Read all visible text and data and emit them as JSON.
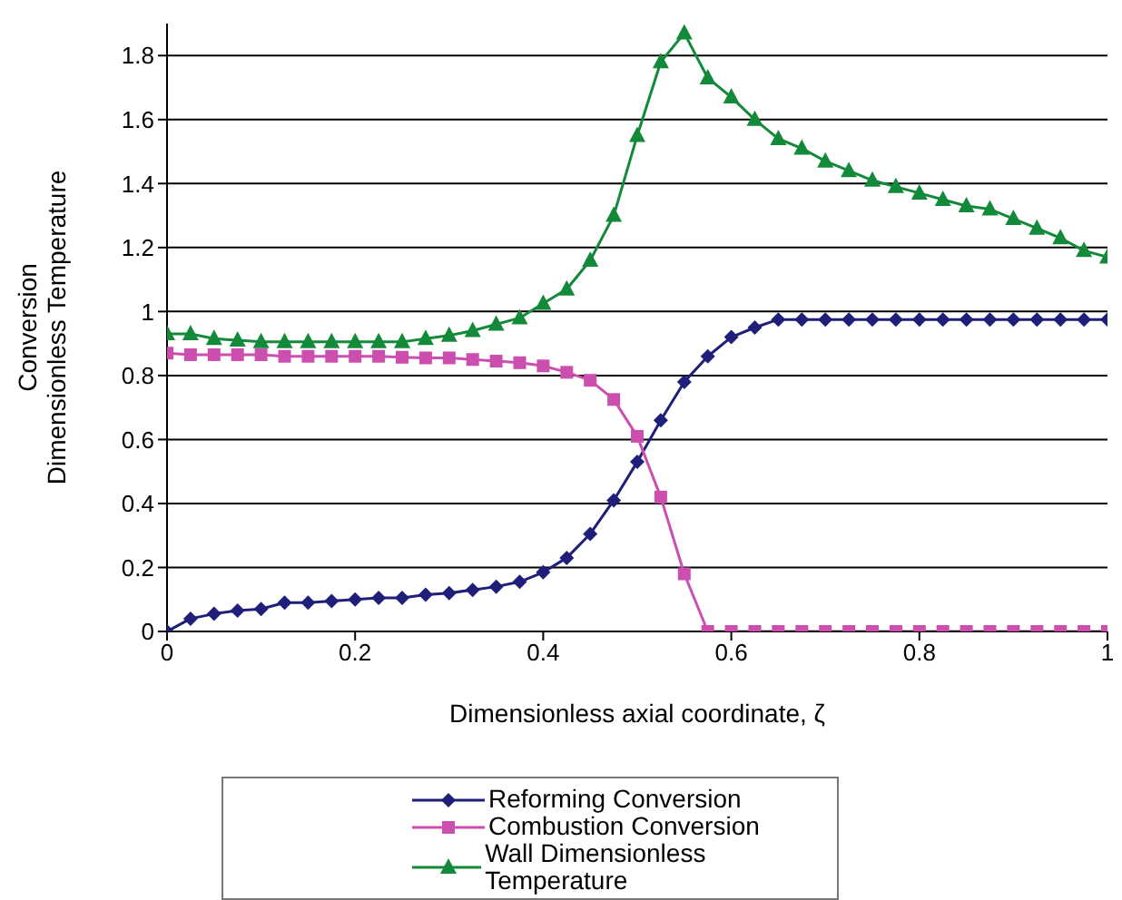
{
  "chart_data": {
    "type": "line",
    "xlabel": "Dimensionless axial coordinate, ζ",
    "ylabel": "Conversion\nDimensionless Temperature",
    "x": [
      0,
      0.025,
      0.05,
      0.075,
      0.1,
      0.125,
      0.15,
      0.175,
      0.2,
      0.225,
      0.25,
      0.275,
      0.3,
      0.325,
      0.35,
      0.375,
      0.4,
      0.425,
      0.45,
      0.475,
      0.5,
      0.525,
      0.55,
      0.575,
      0.6,
      0.625,
      0.65,
      0.675,
      0.7,
      0.725,
      0.75,
      0.775,
      0.8,
      0.825,
      0.85,
      0.875,
      0.9,
      0.925,
      0.95,
      0.975,
      1
    ],
    "series": [
      {
        "name": "Reforming Conversion",
        "color": "#1f1f7a",
        "marker": "diamond",
        "values": [
          0,
          0.04,
          0.055,
          0.065,
          0.07,
          0.09,
          0.09,
          0.095,
          0.1,
          0.105,
          0.105,
          0.115,
          0.12,
          0.13,
          0.14,
          0.155,
          0.185,
          0.23,
          0.305,
          0.41,
          0.53,
          0.66,
          0.78,
          0.86,
          0.92,
          0.95,
          0.975,
          0.975,
          0.975,
          0.975,
          0.975,
          0.975,
          0.975,
          0.975,
          0.975,
          0.975,
          0.975,
          0.975,
          0.975,
          0.975,
          0.975
        ]
      },
      {
        "name": "Combustion Conversion",
        "color": "#cc4fb0",
        "marker": "square",
        "values": [
          0.87,
          0.865,
          0.865,
          0.865,
          0.865,
          0.86,
          0.86,
          0.86,
          0.86,
          0.86,
          0.857,
          0.855,
          0.855,
          0.85,
          0.845,
          0.84,
          0.83,
          0.81,
          0.785,
          0.725,
          0.61,
          0.42,
          0.18,
          0,
          0,
          0,
          0,
          0,
          0,
          0,
          0,
          0,
          0,
          0,
          0,
          0,
          0,
          0,
          0,
          0,
          0
        ]
      },
      {
        "name": "Wall Dimensionless Temperature",
        "color": "#138a3a",
        "marker": "triangle",
        "values": [
          0.93,
          0.93,
          0.915,
          0.91,
          0.905,
          0.905,
          0.905,
          0.905,
          0.905,
          0.905,
          0.905,
          0.915,
          0.925,
          0.94,
          0.96,
          0.98,
          1.025,
          1.07,
          1.16,
          1.3,
          1.55,
          1.78,
          1.87,
          1.73,
          1.67,
          1.6,
          1.54,
          1.51,
          1.47,
          1.44,
          1.41,
          1.39,
          1.37,
          1.35,
          1.33,
          1.32,
          1.29,
          1.26,
          1.23,
          1.19,
          1.17
        ]
      }
    ],
    "xlim": [
      0,
      1
    ],
    "xticks": [
      0,
      0.2,
      0.4,
      0.6,
      0.8,
      1
    ],
    "ylim": [
      0,
      1.9
    ],
    "yticks": [
      0,
      0.2,
      0.4,
      0.6,
      0.8,
      1,
      1.2,
      1.4,
      1.6,
      1.8
    ],
    "grid": "y",
    "legend": "bottom",
    "line_style": "solid"
  }
}
